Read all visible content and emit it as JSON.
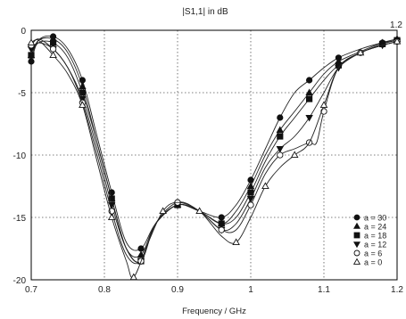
{
  "chart_data": {
    "type": "line",
    "title": "|S1,1| in dB",
    "xlabel": "Frequency / GHz",
    "ylabel": "",
    "xlim": [
      0.7,
      1.2
    ],
    "ylim": [
      -20,
      0
    ],
    "x_ticks": [
      "0.7",
      "0.8",
      "0.9",
      "1",
      "1.1",
      "1.2"
    ],
    "y_ticks": [
      "0",
      "-5",
      "-10",
      "-15",
      "-20"
    ],
    "corner_label": "1.2",
    "grid": true,
    "legend_position": "bottom-right",
    "series": [
      {
        "name": "a = 30",
        "marker": "circle-filled",
        "x": [
          0.7,
          0.71,
          0.73,
          0.75,
          0.77,
          0.79,
          0.81,
          0.83,
          0.85,
          0.87,
          0.9,
          0.93,
          0.96,
          0.98,
          1.0,
          1.02,
          1.04,
          1.06,
          1.08,
          1.1,
          1.12,
          1.15,
          1.18,
          1.2
        ],
        "y": [
          -2.5,
          -0.8,
          -0.5,
          -1.5,
          -4.0,
          -8.5,
          -13.0,
          -17.0,
          -17.5,
          -15.5,
          -14.0,
          -14.5,
          -15.0,
          -14.0,
          -12.0,
          -9.5,
          -7.0,
          -5.0,
          -4.0,
          -3.0,
          -2.2,
          -1.5,
          -1.0,
          -0.8
        ]
      },
      {
        "name": "a = 24",
        "marker": "triangle-up-filled",
        "x": [
          0.7,
          0.71,
          0.73,
          0.75,
          0.77,
          0.79,
          0.81,
          0.83,
          0.85,
          0.87,
          0.9,
          0.93,
          0.96,
          0.98,
          1.0,
          1.02,
          1.04,
          1.06,
          1.08,
          1.1,
          1.12,
          1.15,
          1.18,
          1.2
        ],
        "y": [
          -2.0,
          -0.8,
          -0.7,
          -1.8,
          -4.5,
          -9.0,
          -13.5,
          -17.5,
          -18.0,
          -15.5,
          -14.0,
          -14.5,
          -15.5,
          -14.5,
          -12.5,
          -10.0,
          -8.0,
          -6.5,
          -5.0,
          -3.5,
          -2.5,
          -1.7,
          -1.0,
          -0.7
        ]
      },
      {
        "name": "a = 18",
        "marker": "square-filled",
        "x": [
          0.7,
          0.71,
          0.73,
          0.75,
          0.77,
          0.79,
          0.81,
          0.83,
          0.85,
          0.87,
          0.9,
          0.93,
          0.96,
          0.98,
          1.0,
          1.02,
          1.04,
          1.06,
          1.08,
          1.1,
          1.12,
          1.15,
          1.18,
          1.2
        ],
        "y": [
          -2.0,
          -1.0,
          -1.0,
          -2.2,
          -5.0,
          -9.0,
          -13.5,
          -17.5,
          -18.5,
          -15.5,
          -14.0,
          -14.5,
          -15.5,
          -15.0,
          -13.0,
          -10.5,
          -8.5,
          -7.0,
          -5.5,
          -4.0,
          -2.8,
          -1.8,
          -1.1,
          -0.8
        ]
      },
      {
        "name": "a = 12",
        "marker": "triangle-down-filled",
        "x": [
          0.7,
          0.71,
          0.73,
          0.75,
          0.77,
          0.79,
          0.81,
          0.83,
          0.85,
          0.87,
          0.9,
          0.93,
          0.96,
          0.98,
          1.0,
          1.02,
          1.04,
          1.06,
          1.08,
          1.1,
          1.12,
          1.15,
          1.18,
          1.2
        ],
        "y": [
          -1.5,
          -1.0,
          -1.5,
          -3.0,
          -5.5,
          -9.5,
          -14.0,
          -17.5,
          -18.5,
          -15.5,
          -14.0,
          -14.5,
          -16.0,
          -15.5,
          -13.5,
          -11.0,
          -9.5,
          -8.5,
          -7.0,
          -5.0,
          -3.0,
          -1.8,
          -1.2,
          -0.9
        ]
      },
      {
        "name": "a = 6",
        "marker": "circle-open",
        "x": [
          0.7,
          0.71,
          0.73,
          0.75,
          0.77,
          0.79,
          0.81,
          0.83,
          0.85,
          0.87,
          0.9,
          0.93,
          0.96,
          0.98,
          1.0,
          1.02,
          1.04,
          1.06,
          1.08,
          1.09,
          1.1,
          1.12,
          1.15,
          1.18,
          1.2
        ],
        "y": [
          -1.2,
          -0.7,
          -1.5,
          -3.0,
          -5.8,
          -10.0,
          -14.5,
          -18.0,
          -18.5,
          -15.5,
          -13.8,
          -14.5,
          -16.0,
          -16.0,
          -14.0,
          -11.5,
          -10.0,
          -9.5,
          -9.0,
          -9.0,
          -6.5,
          -3.0,
          -1.8,
          -1.2,
          -0.9
        ]
      },
      {
        "name": "a = 0",
        "marker": "triangle-up-open",
        "x": [
          0.7,
          0.71,
          0.73,
          0.75,
          0.77,
          0.79,
          0.81,
          0.83,
          0.84,
          0.86,
          0.88,
          0.9,
          0.93,
          0.96,
          0.98,
          1.0,
          1.02,
          1.04,
          1.06,
          1.08,
          1.1,
          1.12,
          1.15,
          1.18,
          1.2
        ],
        "y": [
          -1.0,
          -0.8,
          -2.0,
          -3.5,
          -6.0,
          -10.5,
          -15.0,
          -18.5,
          -19.8,
          -17.0,
          -14.5,
          -13.8,
          -14.5,
          -16.5,
          -17.0,
          -15.0,
          -12.5,
          -11.0,
          -10.0,
          -9.0,
          -6.0,
          -3.0,
          -1.8,
          -1.2,
          -0.9
        ]
      }
    ]
  }
}
